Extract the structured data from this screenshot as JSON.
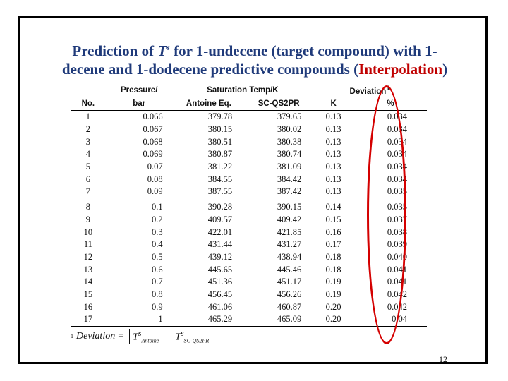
{
  "slide": {
    "title_line1_prefix": "Prediction of ",
    "title_symbol": "T",
    "title_symbol_sup": "s",
    "title_line1_suffix": " for 1-undecene (target compound) with 1-",
    "title_line2_prefix": "decene and 1-dodecene predictive compounds (",
    "title_highlight": "Interpolation",
    "title_line2_suffix": ")",
    "page_number": "12",
    "highlight_color": "#c00000",
    "title_color": "#1f3a7a"
  },
  "table": {
    "header_row1": {
      "pressure": "Pressure/",
      "saturation": "Saturation Temp/K",
      "deviation": "Deviation",
      "deviation_note": "1"
    },
    "header_row2": {
      "no": "No.",
      "bar": "bar",
      "antoine": "Antoine Eq.",
      "scqs2pr": "SC-QS2PR",
      "k": "K",
      "percent": "%"
    },
    "rows": [
      {
        "no": "1",
        "pressure": "0.066",
        "antoine": "379.78",
        "scqs2pr": "379.65",
        "k": "0.13",
        "pct": "0.034"
      },
      {
        "no": "2",
        "pressure": "0.067",
        "antoine": "380.15",
        "scqs2pr": "380.02",
        "k": "0.13",
        "pct": "0.034"
      },
      {
        "no": "3",
        "pressure": "0.068",
        "antoine": "380.51",
        "scqs2pr": "380.38",
        "k": "0.13",
        "pct": "0.034"
      },
      {
        "no": "4",
        "pressure": "0.069",
        "antoine": "380.87",
        "scqs2pr": "380.74",
        "k": "0.13",
        "pct": "0.034"
      },
      {
        "no": "5",
        "pressure": "0.07",
        "antoine": "381.22",
        "scqs2pr": "381.09",
        "k": "0.13",
        "pct": "0.034"
      },
      {
        "no": "6",
        "pressure": "0.08",
        "antoine": "384.55",
        "scqs2pr": "384.42",
        "k": "0.13",
        "pct": "0.034"
      },
      {
        "no": "7",
        "pressure": "0.09",
        "antoine": "387.55",
        "scqs2pr": "387.42",
        "k": "0.13",
        "pct": "0.035"
      },
      {
        "no": "8",
        "pressure": "0.1",
        "antoine": "390.28",
        "scqs2pr": "390.15",
        "k": "0.14",
        "pct": "0.035"
      },
      {
        "no": "9",
        "pressure": "0.2",
        "antoine": "409.57",
        "scqs2pr": "409.42",
        "k": "0.15",
        "pct": "0.037"
      },
      {
        "no": "10",
        "pressure": "0.3",
        "antoine": "422.01",
        "scqs2pr": "421.85",
        "k": "0.16",
        "pct": "0.038"
      },
      {
        "no": "11",
        "pressure": "0.4",
        "antoine": "431.44",
        "scqs2pr": "431.27",
        "k": "0.17",
        "pct": "0.039"
      },
      {
        "no": "12",
        "pressure": "0.5",
        "antoine": "439.12",
        "scqs2pr": "438.94",
        "k": "0.18",
        "pct": "0.040"
      },
      {
        "no": "13",
        "pressure": "0.6",
        "antoine": "445.65",
        "scqs2pr": "445.46",
        "k": "0.18",
        "pct": "0.041"
      },
      {
        "no": "14",
        "pressure": "0.7",
        "antoine": "451.36",
        "scqs2pr": "451.17",
        "k": "0.19",
        "pct": "0.041"
      },
      {
        "no": "15",
        "pressure": "0.8",
        "antoine": "456.45",
        "scqs2pr": "456.26",
        "k": "0.19",
        "pct": "0.042"
      },
      {
        "no": "16",
        "pressure": "0.9",
        "antoine": "461.06",
        "scqs2pr": "460.87",
        "k": "0.20",
        "pct": "0.042"
      },
      {
        "no": "17",
        "pressure": "1",
        "antoine": "465.29",
        "scqs2pr": "465.09",
        "k": "0.20",
        "pct": "0.04"
      }
    ]
  },
  "formula": {
    "note": "1",
    "label": "Deviation",
    "equals": "=",
    "t1": "T",
    "t1_sup": "s",
    "t1_sub": "Antoine",
    "minus": "−",
    "t2": "T",
    "t2_sup": "s",
    "t2_sub": "SC-QS2PR"
  }
}
